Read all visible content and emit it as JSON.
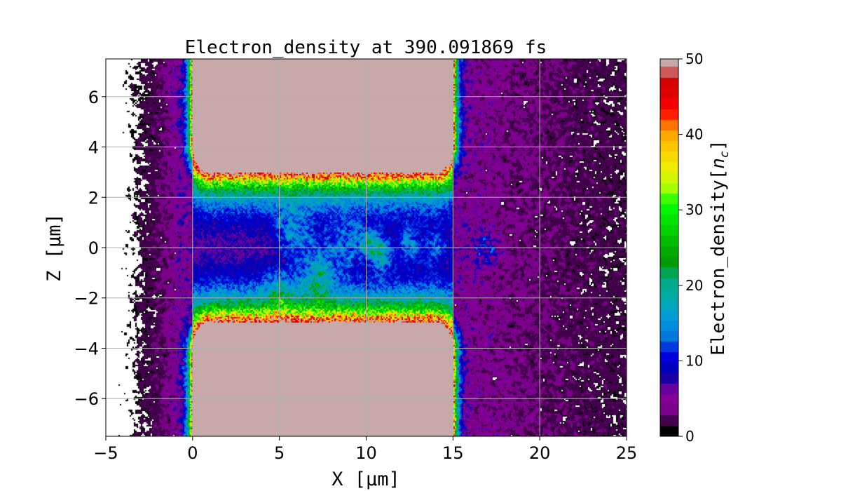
{
  "chart_data": {
    "type": "heatmap",
    "title": "Electron_density at 390.091869 fs",
    "xlabel": "X [μm]",
    "ylabel": "Z [μm]",
    "xlim": [
      -5,
      25
    ],
    "ylim": [
      -7.5,
      7.5
    ],
    "xticks": [
      -5,
      0,
      5,
      10,
      15,
      20,
      25
    ],
    "xtick_labels": [
      "−5",
      "0",
      "5",
      "10",
      "15",
      "20",
      "25"
    ],
    "yticks": [
      -6,
      -4,
      -2,
      0,
      2,
      4,
      6
    ],
    "ytick_labels": [
      "−6",
      "−4",
      "−2",
      "0",
      "2",
      "4",
      "6"
    ],
    "grid": true,
    "colormap": "nipy_spectral",
    "colorbar": {
      "label": "Electron_density[n_c]",
      "label_main": "Electron_density[",
      "label_sym": "n",
      "label_sub": "c",
      "label_end": "]",
      "range": [
        0,
        50
      ],
      "ticks": [
        0,
        10,
        20,
        30,
        40,
        50
      ],
      "tick_labels": [
        "0",
        "10",
        "20",
        "30",
        "40",
        "50"
      ],
      "max_color": "#c8a9aa"
    },
    "target": {
      "x_range": [
        0,
        15
      ],
      "channel_half_width": 3,
      "density": 50
    }
  }
}
